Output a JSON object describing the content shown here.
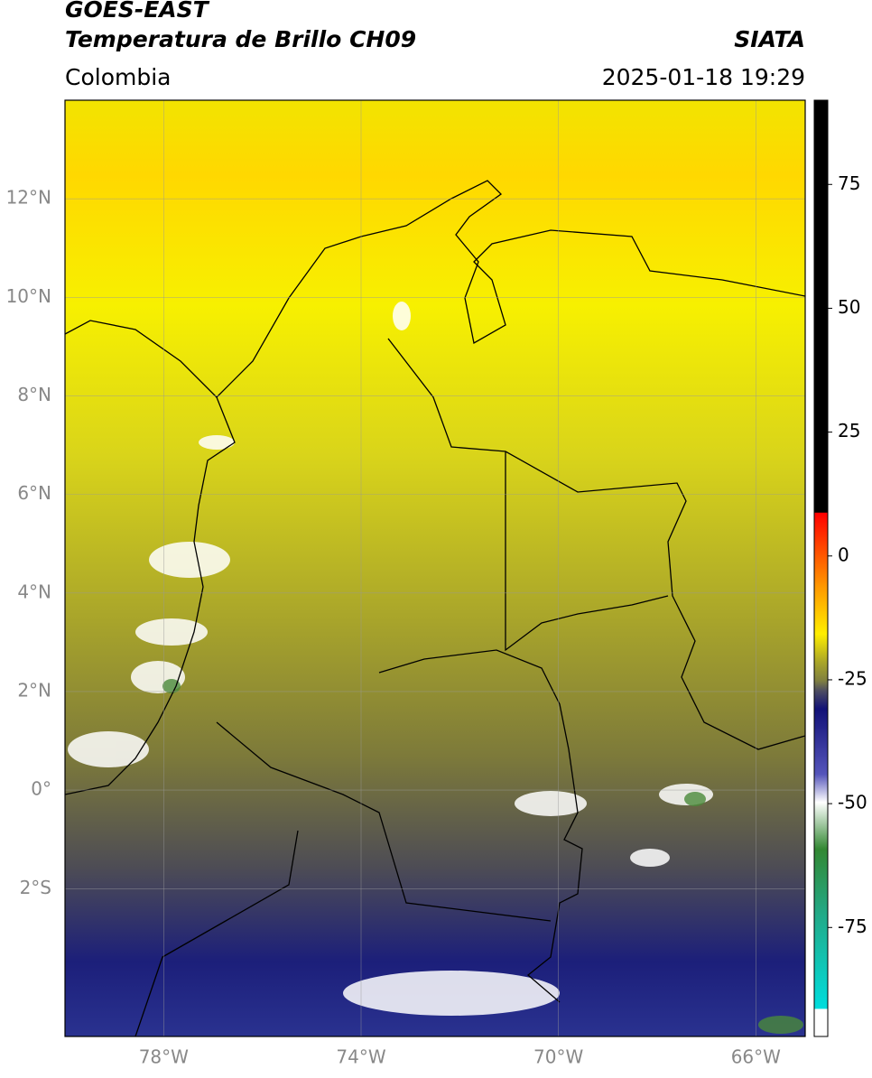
{
  "header": {
    "title": "GOES-EAST",
    "subtitle": "Temperatura de Brillo CH09",
    "source": "SIATA",
    "region": "Colombia",
    "datetime": "2025-01-18 19:29"
  },
  "map": {
    "lonlim": [
      -80,
      -65
    ],
    "latlim": [
      -5,
      14
    ],
    "lat_ticks": [
      {
        "value": 12,
        "label": "12°N"
      },
      {
        "value": 10,
        "label": "10°N"
      },
      {
        "value": 8,
        "label": "8°N"
      },
      {
        "value": 6,
        "label": "6°N"
      },
      {
        "value": 4,
        "label": "4°N"
      },
      {
        "value": 2,
        "label": "2°N"
      },
      {
        "value": 0,
        "label": "0°"
      },
      {
        "value": -2,
        "label": "2°S"
      }
    ],
    "lon_ticks": [
      {
        "value": -78,
        "label": "78°W"
      },
      {
        "value": -74,
        "label": "74°W"
      },
      {
        "value": -70,
        "label": "70°W"
      },
      {
        "value": -66,
        "label": "66°W"
      }
    ]
  },
  "colorbar": {
    "lim": [
      -97,
      92
    ],
    "ticks": [
      75,
      50,
      25,
      0,
      -25,
      -50,
      -75
    ]
  }
}
